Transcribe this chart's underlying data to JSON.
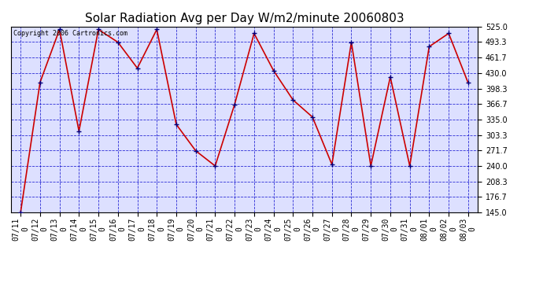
{
  "title": "Solar Radiation Avg per Day W/m2/minute 20060803",
  "copyright": "Copyright 2006 Cartronics.com",
  "x_labels": [
    "07/11",
    "07/12",
    "07/13",
    "07/14",
    "07/15",
    "07/16",
    "07/17",
    "07/18",
    "07/19",
    "07/20",
    "07/21",
    "07/22",
    "07/23",
    "07/24",
    "07/25",
    "07/26",
    "07/27",
    "07/28",
    "07/29",
    "07/30",
    "07/31",
    "08/01",
    "08/02",
    "08/03"
  ],
  "y_values": [
    145.0,
    411.0,
    519.0,
    311.0,
    519.0,
    493.0,
    440.0,
    519.0,
    325.0,
    271.0,
    240.0,
    366.0,
    511.0,
    435.0,
    375.0,
    340.0,
    243.0,
    493.0,
    240.0,
    422.0,
    240.0,
    484.0,
    511.0,
    410.0
  ],
  "ylim": [
    145.0,
    525.0
  ],
  "y_ticks": [
    145.0,
    176.7,
    208.3,
    240.0,
    271.7,
    303.3,
    335.0,
    366.7,
    398.3,
    430.0,
    461.7,
    493.3,
    525.0
  ],
  "line_color": "#cc0000",
  "marker_color": "#000080",
  "bg_color": "#ffffff",
  "plot_bg_color": "#dde0ff",
  "grid_color": "#0000cc",
  "title_fontsize": 11,
  "tick_fontsize": 7,
  "copyright_fontsize": 6
}
